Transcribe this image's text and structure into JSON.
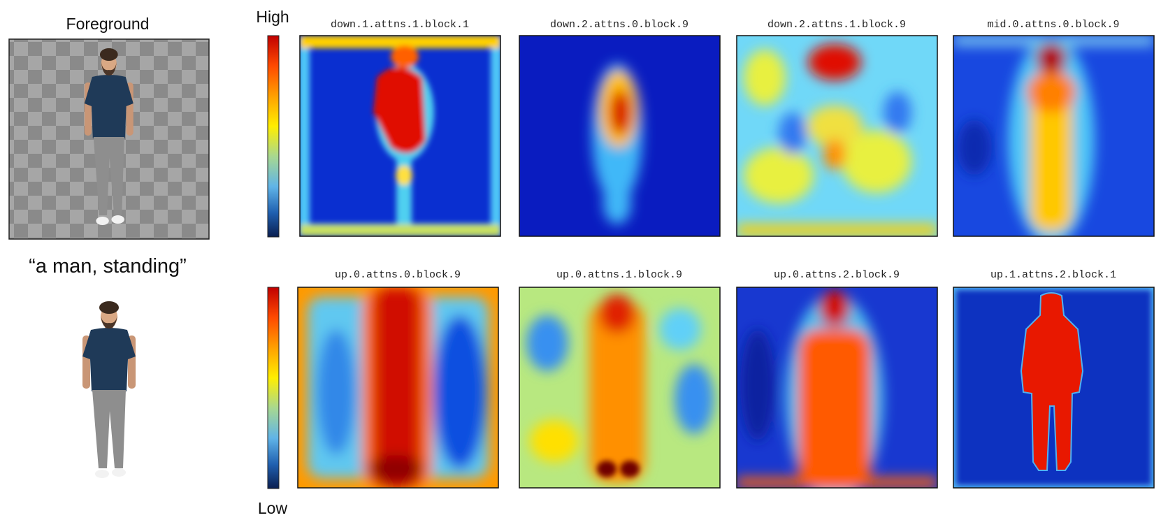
{
  "foreground_panel": {
    "title": "Foreground",
    "prompt": "“a man, standing”"
  },
  "colorbar": {
    "high": "High",
    "low": "Low"
  },
  "maps": {
    "titles": [
      "down.1.attns.1.block.1",
      "down.2.attns.0.block.9",
      "down.2.attns.1.block.9",
      "mid.0.attns.0.block.9",
      "up.0.attns.0.block.9",
      "up.0.attns.1.block.9",
      "up.0.attns.2.block.9",
      "up.1.attns.2.block.1"
    ]
  }
}
